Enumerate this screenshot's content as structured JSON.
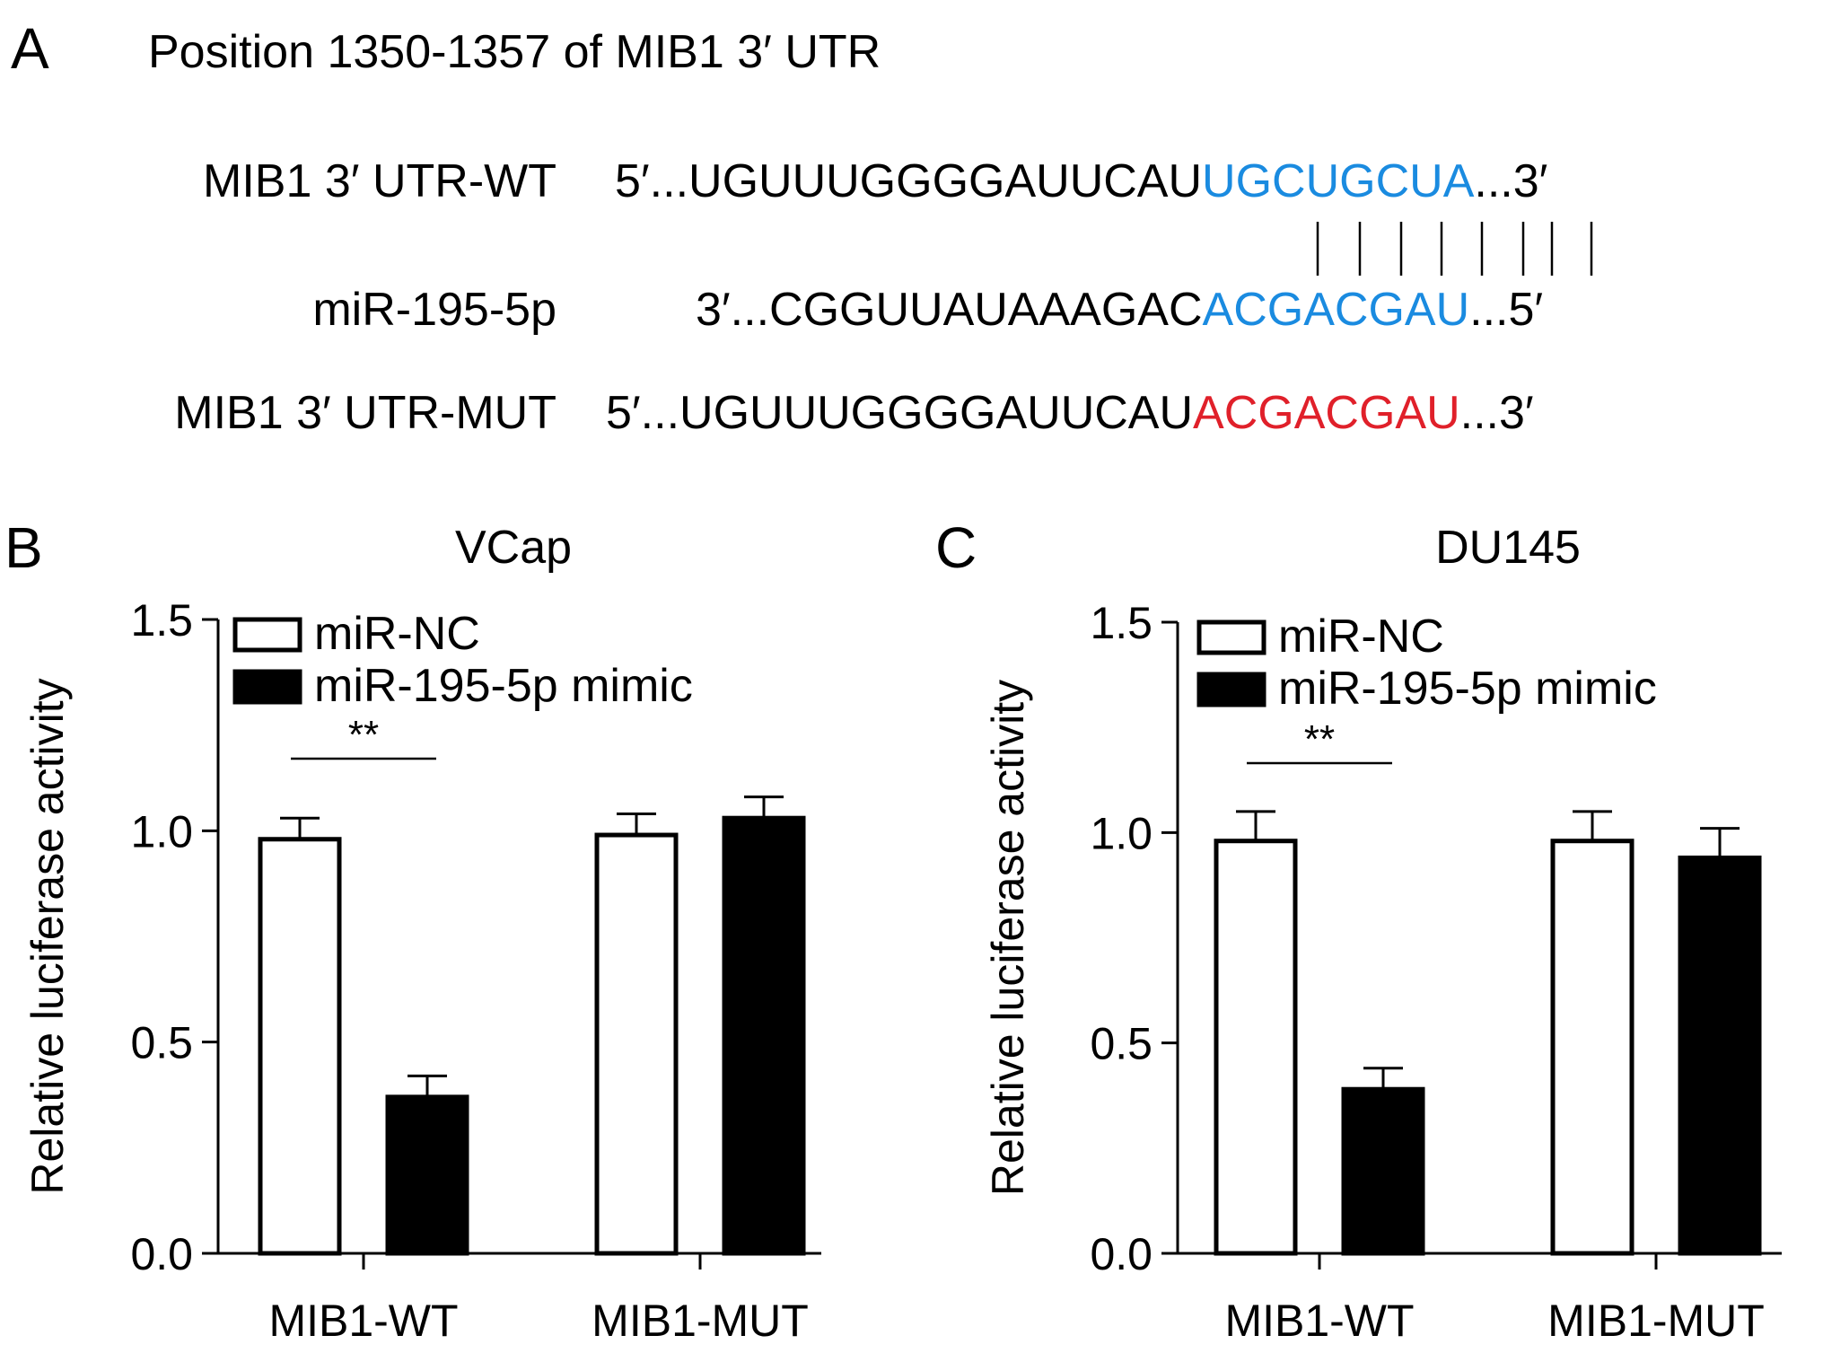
{
  "panel_a": {
    "letter": "A",
    "title": "Position 1350-1357 of MIB1 3′ UTR",
    "rows": [
      {
        "label": "MIB1 3′ UTR-WT",
        "prefix": "5′...UGUUUGGGGAUUCAU",
        "highlight": "UGCUGCUA",
        "suffix": "...3′",
        "color": "#1a8be0"
      },
      {
        "label": "miR-195-5p",
        "prefix": "3′...CGGUUAUAAAGAC",
        "highlight": "ACGACGAU",
        "suffix": "...5′",
        "color": "#1a8be0"
      },
      {
        "label": "MIB1 3′ UTR-MUT",
        "prefix": "5′...UGUUUGGGGAUUCAU",
        "highlight": "ACGACGAU",
        "suffix": "...3′",
        "color": "#e0202a"
      }
    ]
  },
  "chart_data": [
    {
      "panel": "B",
      "type": "bar",
      "title": "VCap",
      "ylabel": "Relative luciferase activity",
      "xlabel": "",
      "ylim": [
        0,
        1.5
      ],
      "yticks": [
        "0.0",
        "0.5",
        "1.0",
        "1.5"
      ],
      "categories": [
        "MIB1-WT",
        "MIB1-MUT"
      ],
      "series": [
        {
          "name": "miR-NC",
          "values": [
            0.98,
            0.99
          ],
          "errors": [
            0.05,
            0.05
          ],
          "fill": "#ffffff"
        },
        {
          "name": "miR-195-5p mimic",
          "values": [
            0.37,
            1.03
          ],
          "errors": [
            0.05,
            0.05
          ],
          "fill": "#000000"
        }
      ],
      "significance": [
        {
          "category": "MIB1-WT",
          "label": "**"
        }
      ],
      "legend_position": "top-left"
    },
    {
      "panel": "C",
      "type": "bar",
      "title": "DU145",
      "ylabel": "Relative luciferase activity",
      "xlabel": "",
      "ylim": [
        0,
        1.5
      ],
      "yticks": [
        "0.0",
        "0.5",
        "1.0",
        "1.5"
      ],
      "categories": [
        "MIB1-WT",
        "MIB1-MUT"
      ],
      "series": [
        {
          "name": "miR-NC",
          "values": [
            0.98,
            0.98
          ],
          "errors": [
            0.07,
            0.07
          ],
          "fill": "#ffffff"
        },
        {
          "name": "miR-195-5p mimic",
          "values": [
            0.39,
            0.94
          ],
          "errors": [
            0.05,
            0.07
          ],
          "fill": "#000000"
        }
      ],
      "significance": [
        {
          "category": "MIB1-WT",
          "label": "**"
        }
      ],
      "legend_position": "top-left"
    }
  ]
}
